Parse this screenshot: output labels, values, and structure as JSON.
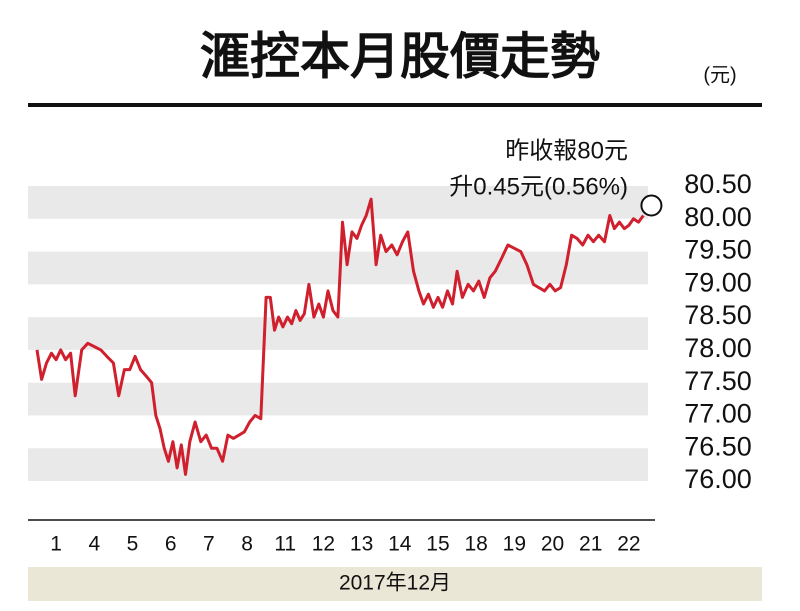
{
  "chart_data": {
    "type": "line",
    "title": "滙控本月股價走勢",
    "unit": "(元)",
    "annotations": [
      "昨收報80元",
      "升0.45元(0.56%)"
    ],
    "x_label": "2017年12月",
    "color": "#d0202e",
    "bands": true,
    "xlim": [
      0,
      16
    ],
    "xticks": [
      {
        "value": 0.5,
        "label": "1"
      },
      {
        "value": 1.5,
        "label": "4"
      },
      {
        "value": 2.5,
        "label": "5"
      },
      {
        "value": 3.5,
        "label": "6"
      },
      {
        "value": 4.5,
        "label": "7"
      },
      {
        "value": 5.5,
        "label": "8"
      },
      {
        "value": 6.5,
        "label": "11"
      },
      {
        "value": 7.5,
        "label": "12"
      },
      {
        "value": 8.5,
        "label": "13"
      },
      {
        "value": 9.5,
        "label": "14"
      },
      {
        "value": 10.5,
        "label": "15"
      },
      {
        "value": 11.5,
        "label": "18"
      },
      {
        "value": 12.5,
        "label": "19"
      },
      {
        "value": 13.5,
        "label": "20"
      },
      {
        "value": 14.5,
        "label": "21"
      },
      {
        "value": 15.5,
        "label": "22"
      }
    ],
    "ylim": [
      76,
      80.5
    ],
    "yticks": [
      {
        "value": 76,
        "label": "76.00"
      },
      {
        "value": 76.5,
        "label": "76.50"
      },
      {
        "value": 77,
        "label": "77.00"
      },
      {
        "value": 77.5,
        "label": "77.50"
      },
      {
        "value": 78,
        "label": "78.00"
      },
      {
        "value": 78.5,
        "label": "78.50"
      },
      {
        "value": 79,
        "label": "79.00"
      },
      {
        "value": 79.5,
        "label": "79.50"
      },
      {
        "value": 80,
        "label": "80.00"
      },
      {
        "value": 80.5,
        "label": "80.50"
      }
    ],
    "x": [
      0,
      0.12,
      0.25,
      0.38,
      0.5,
      0.62,
      0.75,
      0.88,
      1,
      1.17,
      1.33,
      1.5,
      1.67,
      1.83,
      2,
      2.14,
      2.29,
      2.43,
      2.57,
      2.71,
      2.86,
      3,
      3.11,
      3.22,
      3.33,
      3.44,
      3.56,
      3.67,
      3.78,
      3.89,
      4,
      4.14,
      4.29,
      4.43,
      4.57,
      4.71,
      4.86,
      5,
      5.14,
      5.29,
      5.43,
      5.57,
      5.71,
      5.86,
      6,
      6.11,
      6.22,
      6.33,
      6.44,
      6.56,
      6.67,
      6.78,
      6.89,
      7,
      7.12,
      7.25,
      7.38,
      7.5,
      7.62,
      7.75,
      7.88,
      8,
      8.12,
      8.25,
      8.38,
      8.5,
      8.62,
      8.75,
      8.88,
      9,
      9.14,
      9.29,
      9.43,
      9.57,
      9.71,
      9.86,
      10,
      10.12,
      10.25,
      10.38,
      10.5,
      10.62,
      10.75,
      10.88,
      11,
      11.14,
      11.29,
      11.43,
      11.57,
      11.71,
      11.86,
      12,
      12.17,
      12.33,
      12.5,
      12.67,
      12.83,
      13,
      13.14,
      13.29,
      13.43,
      13.57,
      13.71,
      13.86,
      14,
      14.14,
      14.29,
      14.43,
      14.57,
      14.71,
      14.86,
      15,
      15.12,
      15.25,
      15.38,
      15.5,
      15.62,
      15.75,
      15.88
    ],
    "values": [
      78.0,
      77.55,
      77.8,
      77.95,
      77.85,
      78.0,
      77.85,
      77.95,
      77.3,
      78.0,
      78.1,
      78.05,
      78.0,
      77.9,
      77.8,
      77.3,
      77.7,
      77.7,
      77.9,
      77.7,
      77.6,
      77.5,
      77.0,
      76.8,
      76.5,
      76.3,
      76.6,
      76.2,
      76.55,
      76.1,
      76.6,
      76.9,
      76.6,
      76.7,
      76.5,
      76.5,
      76.3,
      76.7,
      76.65,
      76.7,
      76.75,
      76.9,
      77.0,
      76.95,
      78.8,
      78.8,
      78.3,
      78.5,
      78.35,
      78.5,
      78.4,
      78.6,
      78.45,
      78.55,
      79.0,
      78.5,
      78.7,
      78.5,
      78.9,
      78.6,
      78.5,
      79.95,
      79.3,
      79.8,
      79.7,
      79.9,
      80.05,
      80.3,
      79.3,
      79.75,
      79.5,
      79.6,
      79.45,
      79.65,
      79.8,
      79.2,
      78.9,
      78.7,
      78.85,
      78.65,
      78.8,
      78.65,
      78.9,
      78.7,
      79.2,
      78.8,
      79.0,
      78.9,
      79.05,
      78.8,
      79.1,
      79.2,
      79.4,
      79.6,
      79.55,
      79.5,
      79.3,
      79.0,
      78.95,
      78.9,
      79.0,
      78.9,
      78.95,
      79.3,
      79.75,
      79.7,
      79.6,
      79.75,
      79.65,
      79.75,
      79.65,
      80.05,
      79.85,
      79.95,
      79.85,
      79.9,
      80.0,
      79.95,
      80.05
    ]
  }
}
